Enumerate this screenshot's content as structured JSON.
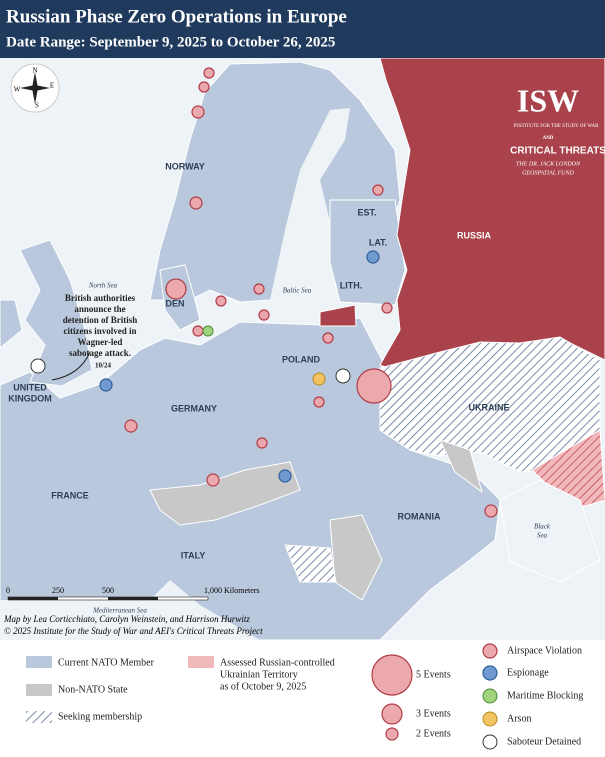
{
  "header": {
    "title": "Russian Phase Zero Operations in Europe",
    "subtitle": "Date Range: September 9, 2025 to October 26, 2025"
  },
  "logo": {
    "isw": "ISW",
    "isw_full": "INSTITUTE FOR THE STUDY OF WAR",
    "and": "AND",
    "ct": "CRITICAL THREATS",
    "fund_1": "THE DR. JACK LONDON",
    "fund_2": "GEOSPATIAL FUND"
  },
  "compass": {
    "n": "N",
    "e": "E",
    "s": "S",
    "w": "W"
  },
  "labels": {
    "norway": "NORWAY",
    "est": "EST.",
    "lat": "LAT.",
    "lith": "LITH.",
    "den": "DEN",
    "poland": "POLAND",
    "germany": "GERMANY",
    "uk_1": "UNITED",
    "uk_2": "KINGDOM",
    "france": "FRANCE",
    "italy": "ITALY",
    "romania": "ROMANIA",
    "ukraine": "UKRAINE",
    "russia": "RUSSIA",
    "north_sea": "North Sea",
    "baltic_sea": "Baltic Sea",
    "black_sea_1": "Black",
    "black_sea_2": "Sea",
    "med_sea": "Mediterranean Sea"
  },
  "annotation": {
    "lines": [
      "British authorities",
      "announce the",
      "detention of British",
      "citizens involved in",
      "Wagner-led",
      "sabotage attack."
    ],
    "date": "10/24"
  },
  "scale": {
    "labels": [
      "0",
      "250",
      "500",
      "1,000 Kilometers"
    ]
  },
  "credits": [
    "Map by Lea Corticchiato, Carolyn Weinstein, and Harrison Hurwitz",
    "© 2025 Institute for the Study of War and AEI's Critical Threats Project"
  ],
  "legend": {
    "nato": "Current NATO Member",
    "non_nato": "Non-NATO State",
    "seeking": "Seeking membership",
    "assessed_1": "Assessed Russian-controlled",
    "assessed_2": "Ukrainian Territory",
    "assessed_3": "as of October 9, 2025",
    "events_5": "5 Events",
    "events_3": "3 Events",
    "events_2": "2 Events",
    "airspace": "Airspace Violation",
    "espionage": "Espionage",
    "maritime": "Maritime Blocking",
    "arson": "Arson",
    "saboteur": "Saboteur Detained"
  }
}
